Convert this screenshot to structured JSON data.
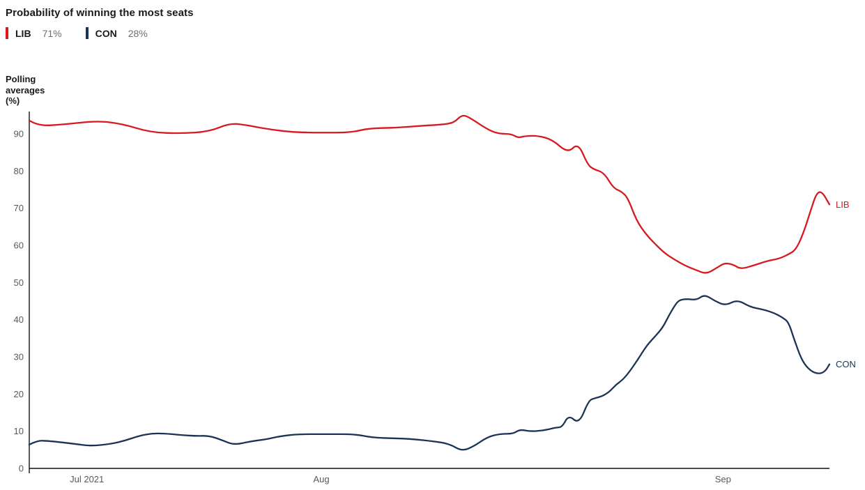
{
  "header": {
    "title": "Probability of winning the most seats"
  },
  "legend": {
    "items": [
      {
        "label": "LIB",
        "value": "71%",
        "color": "#d71920"
      },
      {
        "label": "CON",
        "value": "28%",
        "color": "#1b3354"
      }
    ]
  },
  "y_axis_title_lines": [
    "Polling",
    "averages",
    "(%)"
  ],
  "colors": {
    "background": "#ffffff",
    "axis": "#111111",
    "tick_text": "#56595e",
    "title_text": "#1a1a1a",
    "legend_value_text": "#6e6e6e",
    "lib": "#d71920",
    "con": "#1b3354"
  },
  "chart_data": {
    "type": "line",
    "title": "Probability of winning the most seats",
    "ylabel": "Polling averages (%)",
    "xlabel": "",
    "ylim": [
      0,
      96
    ],
    "yticks": [
      0,
      10,
      20,
      30,
      40,
      50,
      60,
      70,
      80,
      90
    ],
    "grid": false,
    "legend_position": "top-left",
    "x_axis": {
      "unit": "date",
      "note": "position is percent along x-axis; month ticks unevenly spaced (poll density)",
      "ticks": [
        {
          "label": "Jul 2021",
          "pos": 7.2
        },
        {
          "label": "Aug",
          "pos": 36.5
        },
        {
          "label": "Sep",
          "pos": 86.7
        }
      ]
    },
    "series": [
      {
        "name": "LIB",
        "color": "#d71920",
        "end_value_label": "71%",
        "points": [
          [
            0,
            93.6
          ],
          [
            1.1,
            92.1
          ],
          [
            4.2,
            92.5
          ],
          [
            8.5,
            93.5
          ],
          [
            11.6,
            92.7
          ],
          [
            15.1,
            90.4
          ],
          [
            19,
            90.1
          ],
          [
            22.5,
            90.6
          ],
          [
            25.1,
            92.9
          ],
          [
            27.3,
            92.3
          ],
          [
            29.4,
            91.4
          ],
          [
            32.9,
            90.4
          ],
          [
            37.3,
            90.3
          ],
          [
            40.3,
            90.4
          ],
          [
            42.5,
            91.5
          ],
          [
            45.6,
            91.6
          ],
          [
            48.6,
            92.1
          ],
          [
            51.7,
            92.5
          ],
          [
            53.1,
            93
          ],
          [
            54.1,
            95.2
          ],
          [
            55.1,
            94.3
          ],
          [
            57.3,
            91.1
          ],
          [
            58.7,
            90
          ],
          [
            60.2,
            90
          ],
          [
            61.1,
            88.9
          ],
          [
            61.9,
            89.4
          ],
          [
            63.6,
            89.5
          ],
          [
            65.4,
            88.4
          ],
          [
            67.3,
            84.8
          ],
          [
            68.6,
            87.6
          ],
          [
            69.8,
            81.6
          ],
          [
            70.6,
            80.4
          ],
          [
            71.8,
            79.6
          ],
          [
            73,
            75.4
          ],
          [
            74,
            74.5
          ],
          [
            74.8,
            72.8
          ],
          [
            75.9,
            66.6
          ],
          [
            77.1,
            62.9
          ],
          [
            78.2,
            60.4
          ],
          [
            79.4,
            57.9
          ],
          [
            80.6,
            56.2
          ],
          [
            82.1,
            54.4
          ],
          [
            83.4,
            53.3
          ],
          [
            84.6,
            52.3
          ],
          [
            85.9,
            53.9
          ],
          [
            86.9,
            55.3
          ],
          [
            88,
            54.8
          ],
          [
            88.9,
            53.6
          ],
          [
            90.4,
            54.5
          ],
          [
            92.2,
            55.8
          ],
          [
            93.7,
            56.4
          ],
          [
            94.9,
            57.6
          ],
          [
            95.8,
            58.8
          ],
          [
            96.7,
            63
          ],
          [
            97.6,
            69
          ],
          [
            98.4,
            74.2
          ],
          [
            99.1,
            74.4
          ],
          [
            100,
            71
          ]
        ]
      },
      {
        "name": "CON",
        "color": "#1b3354",
        "end_value_label": "28%",
        "points": [
          [
            0,
            6.4
          ],
          [
            1,
            7.5
          ],
          [
            2.4,
            7.4
          ],
          [
            5.7,
            6.6
          ],
          [
            7.7,
            6
          ],
          [
            10.3,
            6.6
          ],
          [
            12,
            7.5
          ],
          [
            13.8,
            8.8
          ],
          [
            15.3,
            9.4
          ],
          [
            16.8,
            9.4
          ],
          [
            18.8,
            9
          ],
          [
            20.9,
            8.7
          ],
          [
            22.5,
            8.8
          ],
          [
            24.2,
            7.5
          ],
          [
            25.6,
            6.3
          ],
          [
            27.7,
            7.3
          ],
          [
            29.6,
            7.8
          ],
          [
            31.4,
            8.7
          ],
          [
            33.6,
            9.2
          ],
          [
            36.8,
            9.2
          ],
          [
            40.8,
            9.2
          ],
          [
            42.7,
            8.3
          ],
          [
            45.6,
            8.1
          ],
          [
            47.9,
            7.9
          ],
          [
            50.5,
            7.3
          ],
          [
            52.5,
            6.6
          ],
          [
            54.1,
            4.6
          ],
          [
            55.6,
            6
          ],
          [
            57.3,
            8.5
          ],
          [
            58.9,
            9.3
          ],
          [
            60.5,
            9.3
          ],
          [
            61.3,
            10.5
          ],
          [
            62.7,
            9.9
          ],
          [
            64.5,
            10.3
          ],
          [
            65.8,
            11
          ],
          [
            66.6,
            11.1
          ],
          [
            67.4,
            14.4
          ],
          [
            68.7,
            11.9
          ],
          [
            69.9,
            18.3
          ],
          [
            70.7,
            18.9
          ],
          [
            71.6,
            19.4
          ],
          [
            72.5,
            20.6
          ],
          [
            73.3,
            22.5
          ],
          [
            74.2,
            23.9
          ],
          [
            74.9,
            25.7
          ],
          [
            76,
            29.1
          ],
          [
            77.2,
            33.2
          ],
          [
            78.3,
            35.7
          ],
          [
            79.2,
            38
          ],
          [
            79.9,
            41
          ],
          [
            80.6,
            43.6
          ],
          [
            81.2,
            45.3
          ],
          [
            82.2,
            45.6
          ],
          [
            83.4,
            45.3
          ],
          [
            84.4,
            46.8
          ],
          [
            85.7,
            45
          ],
          [
            87,
            43.8
          ],
          [
            88.5,
            45.4
          ],
          [
            90.1,
            43.4
          ],
          [
            91.8,
            42.7
          ],
          [
            93.1,
            41.8
          ],
          [
            94.2,
            40.5
          ],
          [
            94.9,
            39.3
          ],
          [
            95.7,
            34
          ],
          [
            96.6,
            28.8
          ],
          [
            97.6,
            26.3
          ],
          [
            98.5,
            25.4
          ],
          [
            99.4,
            25.9
          ],
          [
            100,
            28
          ]
        ]
      }
    ]
  }
}
